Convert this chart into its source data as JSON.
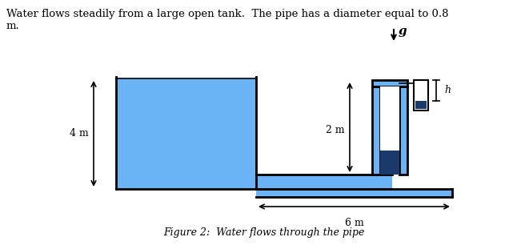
{
  "bg_color": "#ffffff",
  "water_color": "#6ab4f5",
  "dark_water": "#1a3a6b",
  "wall_color": "#000000",
  "header_text": "Water flows steadily from a large open tank.  The pipe has a diameter equal to 0.8\nm.",
  "figure_caption": "Figure 2:  Water flows through the pipe",
  "label_4m": "4 m",
  "label_2m": "2 m",
  "label_6m": "6 m",
  "label_g": "g",
  "label_h": "h"
}
